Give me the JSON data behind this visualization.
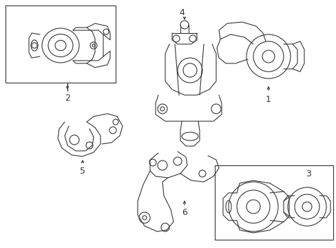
{
  "bg_color": "#ffffff",
  "line_color": "#333333",
  "lw": 0.8,
  "fig_width": 4.89,
  "fig_height": 3.6,
  "dpi": 100
}
